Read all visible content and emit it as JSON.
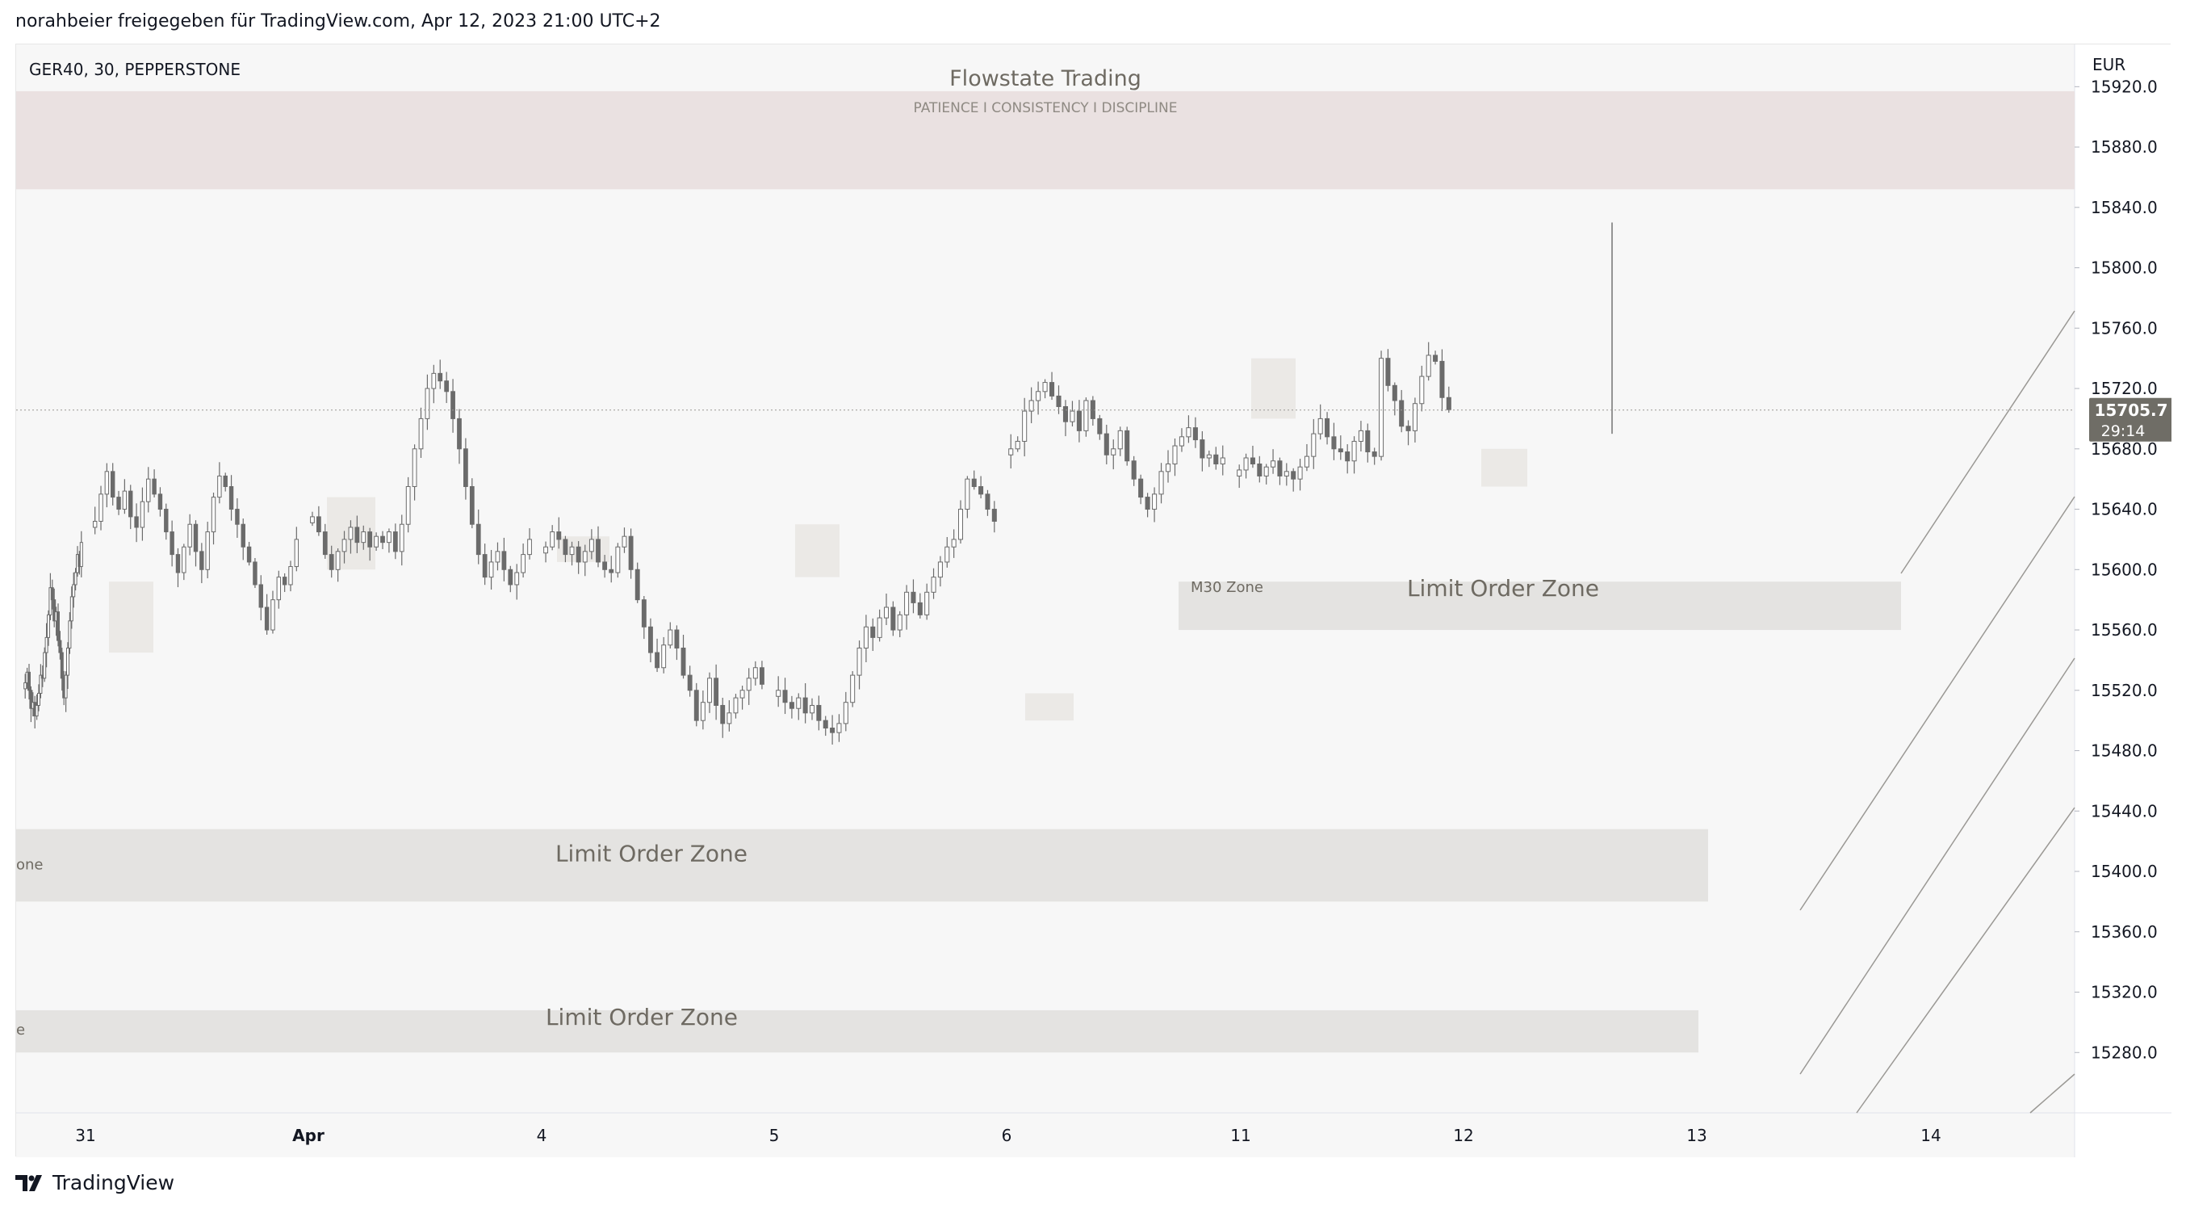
{
  "header": {
    "caption": "norahbeier freigegeben für TradingView.com, Apr 12, 2023 21:00 UTC+2"
  },
  "chart_header": {
    "symbol": "GER40, 30, PEPPERSTONE",
    "title": "Flowstate Trading",
    "subtitle": "PATIENCE I CONSISTENCY I DISCIPLINE"
  },
  "footer": {
    "brand": "TradingView"
  },
  "colors": {
    "background": "#f7f7f7",
    "candle": "#6b6b6b",
    "zone": "#e4e3e1",
    "supply_zone": "#eae1e1",
    "price_tag": "#6f6d66",
    "text": "#131722",
    "zone_text": "#6e6a62"
  },
  "chart_data": {
    "type": "candlestick",
    "symbol": "GER40",
    "timeframe": "30",
    "currency": "EUR",
    "ylim": [
      15240,
      15948
    ],
    "y_ticks": [
      15280.0,
      15320.0,
      15360.0,
      15400.0,
      15440.0,
      15480.0,
      15520.0,
      15560.0,
      15600.0,
      15640.0,
      15680.0,
      15720.0,
      15760.0,
      15800.0,
      15840.0,
      15880.0,
      15920.0
    ],
    "x_ticks": [
      {
        "label": "31",
        "bold": false
      },
      {
        "label": "Apr",
        "bold": true
      },
      {
        "label": "4",
        "bold": false
      },
      {
        "label": "5",
        "bold": false
      },
      {
        "label": "6",
        "bold": false
      },
      {
        "label": "11",
        "bold": false
      },
      {
        "label": "12",
        "bold": false
      },
      {
        "label": "13",
        "bold": false
      },
      {
        "label": "14",
        "bold": false
      }
    ],
    "last_price": {
      "label": "15705.7",
      "value": 15705.7,
      "countdown": "29:14"
    },
    "series": [
      {
        "segment": "Mar 31",
        "close": [
          15525,
          15532,
          15520,
          15508,
          15512,
          15503,
          15510,
          15518,
          15530,
          15528,
          15545,
          15555,
          15570,
          15588,
          15580,
          15566,
          15572,
          15553,
          15545,
          15528,
          15515,
          15530,
          15548,
          15566,
          15582,
          15590,
          15598,
          15610,
          15602,
          15618
        ]
      },
      {
        "segment": "Apr 3",
        "close": [
          15632,
          15650,
          15665,
          15648,
          15640,
          15652,
          15635,
          15628,
          15645,
          15660,
          15650,
          15640,
          15625,
          15610,
          15598,
          15615,
          15630,
          15612,
          15600,
          15625,
          15648,
          15662,
          15655,
          15640,
          15630,
          15615,
          15605,
          15590,
          15575,
          15560,
          15580,
          15595,
          15590,
          15602,
          15620
        ]
      },
      {
        "segment": "Apr 4",
        "close": [
          15635,
          15625,
          15610,
          15600,
          15612,
          15620,
          15628,
          15618,
          15625,
          15615,
          15622,
          15618,
          15625,
          15612,
          15630,
          15655,
          15680,
          15700,
          15720,
          15730,
          15725,
          15718,
          15700,
          15680,
          15655,
          15630,
          15610,
          15595,
          15605,
          15612,
          15600,
          15590,
          15598,
          15610,
          15620
        ]
      },
      {
        "segment": "Apr 5",
        "close": [
          15615,
          15625,
          15620,
          15610,
          15615,
          15605,
          15612,
          15620,
          15605,
          15600,
          15598,
          15615,
          15622,
          15600,
          15580,
          15562,
          15545,
          15535,
          15550,
          15560,
          15548,
          15530,
          15520,
          15500,
          15512,
          15528,
          15510,
          15498,
          15505,
          15515,
          15520,
          15528,
          15535,
          15524
        ]
      },
      {
        "segment": "Apr 6",
        "close": [
          15520,
          15512,
          15508,
          15515,
          15505,
          15510,
          15500,
          15495,
          15492,
          15498,
          15512,
          15530,
          15548,
          15562,
          15555,
          15568,
          15575,
          15560,
          15570,
          15585,
          15578,
          15570,
          15585,
          15595,
          15605,
          15615,
          15620,
          15640,
          15660,
          15655,
          15650,
          15640,
          15632
        ]
      },
      {
        "segment": "Apr 11",
        "close": [
          15680,
          15685,
          15705,
          15712,
          15718,
          15724,
          15715,
          15708,
          15698,
          15705,
          15692,
          15712,
          15700,
          15690,
          15676,
          15680,
          15692,
          15672,
          15660,
          15648,
          15640,
          15650,
          15665,
          15670,
          15682,
          15688,
          15694,
          15686,
          15674,
          15676,
          15670,
          15674
        ]
      },
      {
        "segment": "Apr 12",
        "close": [
          15666,
          15674,
          15670,
          15662,
          15668,
          15672,
          15662,
          15665,
          15660,
          15668,
          15675,
          15690,
          15700,
          15688,
          15680,
          15678,
          15672,
          15685,
          15692,
          15678,
          15675,
          15740,
          15722,
          15712,
          15695,
          15692,
          15710,
          15728,
          15742,
          15738,
          15714,
          15706
        ]
      }
    ],
    "zones": [
      {
        "type": "supply",
        "label": "",
        "top": 15917,
        "bottom": 15852,
        "x_from": "start",
        "x_to": "axis"
      },
      {
        "type": "limit",
        "label": "Limit Order Zone",
        "top": 15592,
        "bottom": 15560,
        "x_from": "Apr 11",
        "x_to": "Apr 13 - Apr 14"
      },
      {
        "type": "limit",
        "label": "Limit Order Zone",
        "top": 15428,
        "bottom": 15380,
        "x_from": "start",
        "x_to": "Apr 13"
      },
      {
        "type": "limit",
        "label": "Limit Order Zone",
        "top": 15308,
        "bottom": 15280,
        "x_from": "start",
        "x_to": "Apr 13"
      }
    ],
    "zone_labels": [
      {
        "text": "M30 Zone"
      },
      {
        "text": "one"
      },
      {
        "text": "e"
      }
    ]
  }
}
